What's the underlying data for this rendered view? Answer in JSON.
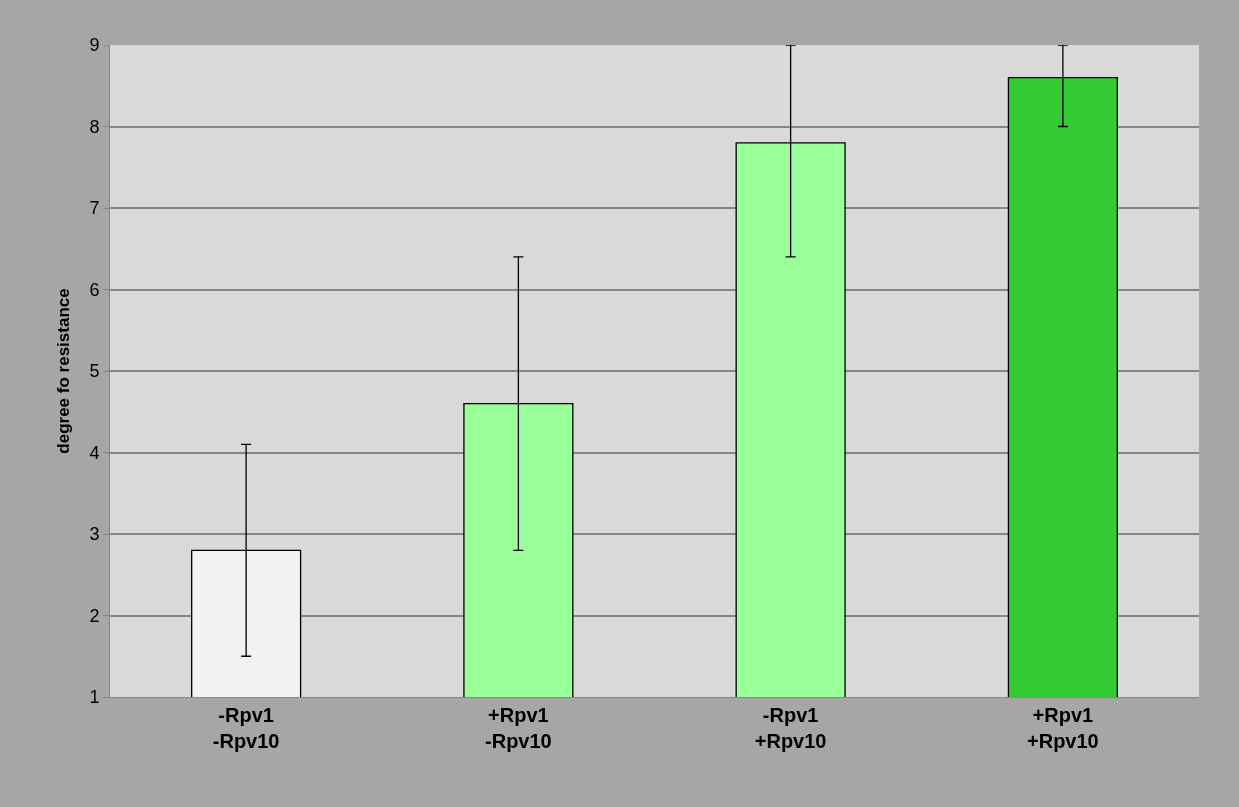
{
  "chart_data": {
    "type": "bar",
    "ylabel": "degree fo resistance",
    "categories": [
      "-Rpv1\n-Rpv10",
      "+Rpv1\n-Rpv10",
      "-Rpv1\n+Rpv10",
      "+Rpv1\n+Rpv10"
    ],
    "values": [
      2.8,
      4.6,
      7.8,
      8.6
    ],
    "colors": [
      "#f2f2f2",
      "#99ff99",
      "#99ff99",
      "#33cc33"
    ],
    "errors": [
      [
        1.5,
        4.1
      ],
      [
        2.8,
        6.4
      ],
      [
        6.4,
        9
      ],
      [
        8.0,
        9
      ]
    ],
    "ylim": [
      1,
      9
    ],
    "yticks": [
      1,
      2,
      3,
      4,
      5,
      6,
      7,
      8,
      9
    ],
    "grid": "y",
    "legend": false
  }
}
